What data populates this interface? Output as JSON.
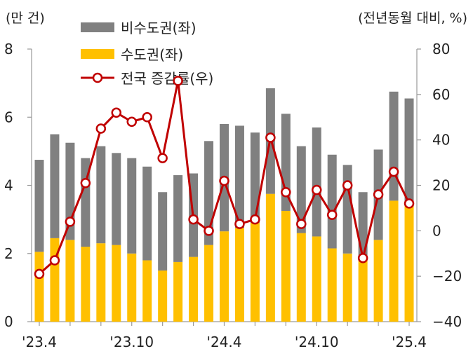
{
  "chart_data": {
    "type": "bar+line",
    "left_axis": {
      "unit": "(만 건)",
      "min": 0,
      "max": 8,
      "ticks": [
        "0",
        "2",
        "4",
        "6",
        "8"
      ]
    },
    "right_axis": {
      "unit": "(전년동월 대비, %)",
      "min": -40,
      "max": 80,
      "ticks": [
        "-40",
        "-20",
        "0",
        "20",
        "40",
        "60",
        "80"
      ]
    },
    "x_ticks": [
      {
        "label": "'23.4",
        "index": 0
      },
      {
        "label": "'23.10",
        "index": 6
      },
      {
        "label": "'24.4",
        "index": 12
      },
      {
        "label": "'24.10",
        "index": 18
      },
      {
        "label": "'25.4",
        "index": 24
      }
    ],
    "months": [
      "23.4",
      "23.5",
      "23.6",
      "23.7",
      "23.8",
      "23.9",
      "23.10",
      "23.11",
      "23.12",
      "24.1",
      "24.2",
      "24.3",
      "24.4",
      "24.5",
      "24.6",
      "24.7",
      "24.8",
      "24.9",
      "24.10",
      "24.11",
      "24.12",
      "25.1",
      "25.2",
      "25.3",
      "25.4"
    ],
    "series": [
      {
        "name": "수도권(좌)",
        "axis": "left",
        "kind": "stacked-bar-bottom",
        "color": "#FFC000",
        "values": [
          2.05,
          2.45,
          2.4,
          2.2,
          2.3,
          2.25,
          2.0,
          1.8,
          1.5,
          1.75,
          1.9,
          2.25,
          2.65,
          2.75,
          2.9,
          3.75,
          3.25,
          2.6,
          2.5,
          2.15,
          2.0,
          1.8,
          2.4,
          3.55,
          3.45
        ]
      },
      {
        "name": "비수도권(좌)",
        "axis": "left",
        "kind": "stacked-bar-top",
        "color": "#808080",
        "values": [
          2.7,
          3.05,
          2.85,
          2.6,
          2.85,
          2.7,
          2.8,
          2.75,
          2.3,
          2.55,
          2.45,
          3.05,
          3.15,
          3.0,
          2.65,
          3.1,
          2.85,
          2.55,
          3.2,
          2.75,
          2.6,
          2.0,
          2.65,
          3.2,
          3.1
        ]
      },
      {
        "name": "전국 증감률(우)",
        "axis": "right",
        "kind": "line",
        "color": "#C00000",
        "values": [
          -19,
          -13,
          4,
          21,
          45,
          52,
          48,
          50,
          32,
          66,
          5,
          0,
          22,
          3,
          5,
          41,
          17,
          3,
          18,
          7,
          20,
          -12,
          16,
          26,
          12
        ]
      }
    ]
  }
}
